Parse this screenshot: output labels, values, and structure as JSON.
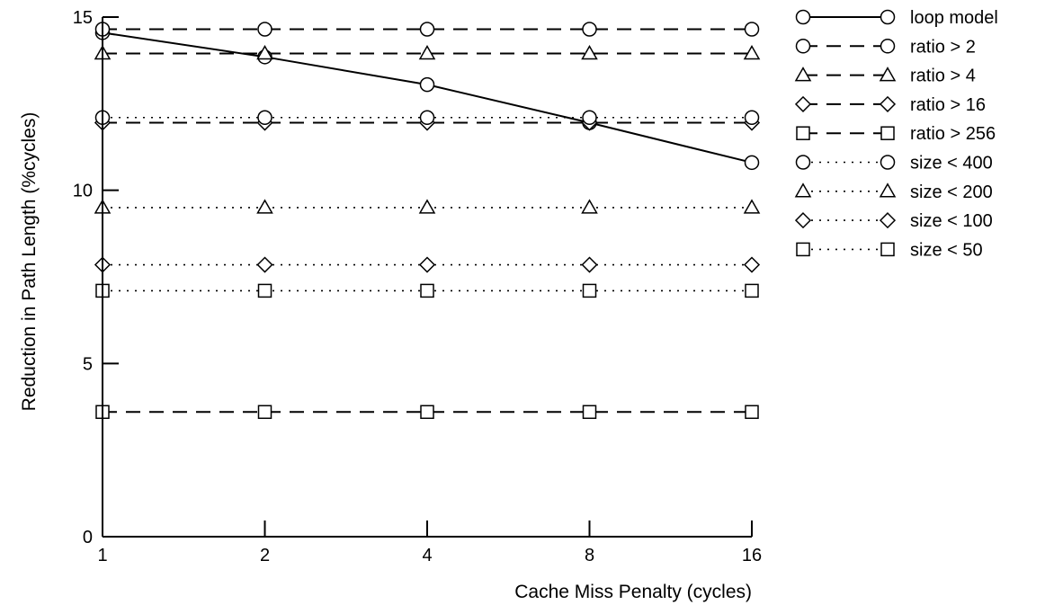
{
  "chart_data": {
    "type": "line",
    "title": "",
    "xlabel": "Cache Miss Penalty (cycles)",
    "ylabel": "Reduction in Path Length (%cycles)",
    "x": [
      1,
      2,
      4,
      8,
      16
    ],
    "x_scale": "log2",
    "x_tick_labels": [
      "1",
      "2",
      "4",
      "8",
      "16"
    ],
    "ylim": [
      0,
      15
    ],
    "y_ticks": [
      0,
      5,
      10,
      15
    ],
    "y_tick_labels": [
      "0",
      "5",
      "10",
      "15"
    ],
    "grid": false,
    "legend_position": "right",
    "series": [
      {
        "name": "loop model",
        "marker": "circle",
        "line": "solid",
        "values": [
          14.55,
          13.85,
          13.05,
          11.95,
          10.8
        ]
      },
      {
        "name": "ratio > 2",
        "marker": "circle",
        "line": "dashed",
        "values": [
          14.65,
          14.65,
          14.65,
          14.65,
          14.65
        ]
      },
      {
        "name": "ratio > 4",
        "marker": "triangle",
        "line": "dashed",
        "values": [
          13.95,
          13.95,
          13.95,
          13.95,
          13.95
        ]
      },
      {
        "name": "ratio > 16",
        "marker": "diamond",
        "line": "dashed",
        "values": [
          11.95,
          11.95,
          11.95,
          11.95,
          11.95
        ]
      },
      {
        "name": "ratio > 256",
        "marker": "square",
        "line": "dashed",
        "values": [
          3.6,
          3.6,
          3.6,
          3.6,
          3.6
        ]
      },
      {
        "name": "size < 400",
        "marker": "circle",
        "line": "dotted",
        "values": [
          12.1,
          12.1,
          12.1,
          12.1,
          12.1
        ]
      },
      {
        "name": "size < 200",
        "marker": "triangle",
        "line": "dotted",
        "values": [
          9.5,
          9.5,
          9.5,
          9.5,
          9.5
        ]
      },
      {
        "name": "size < 100",
        "marker": "diamond",
        "line": "dotted",
        "values": [
          7.85,
          7.85,
          7.85,
          7.85,
          7.85
        ]
      },
      {
        "name": "size < 50",
        "marker": "square",
        "line": "dotted",
        "values": [
          7.1,
          7.1,
          7.1,
          7.1,
          7.1
        ]
      }
    ]
  }
}
